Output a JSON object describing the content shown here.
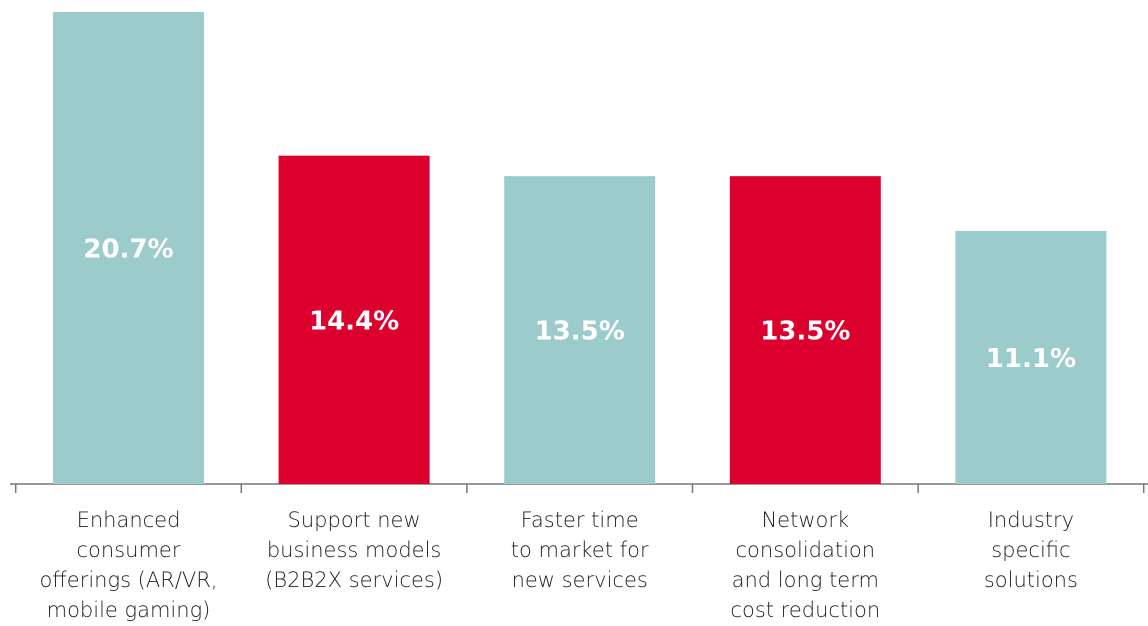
{
  "chart_data": {
    "type": "bar",
    "categories": [
      "Enhanced\nconsumer\nofferings (AR/VR,\nmobile gaming)",
      "Support new\nbusiness models\n(B2B2X services)",
      "Faster time\nto market for\nnew services",
      "Network\nconsolidation\nand long term\ncost reduction",
      "Industry\nspecific\nsolutions"
    ],
    "values": [
      20.7,
      14.4,
      13.5,
      13.5,
      11.1
    ],
    "value_labels": [
      "20.7%",
      "14.4%",
      "13.5%",
      "13.5%",
      "11.1%"
    ],
    "colors": [
      "#9ccbcb",
      "#dc002e",
      "#9ccbcb",
      "#dc002e",
      "#9ccbcb"
    ]
  }
}
